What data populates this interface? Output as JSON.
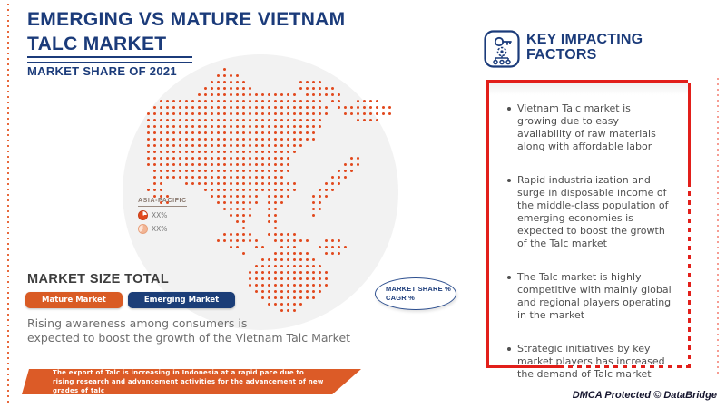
{
  "header": {
    "title_line1": "EMERGING VS MATURE VIETNAM",
    "title_line2": "TALC MARKET",
    "subtitle": "MARKET SHARE OF 2021"
  },
  "key_factors": {
    "heading_line1": "KEY IMPACTING",
    "heading_line2": "FACTORS",
    "icon": "key-gear-icon",
    "bullets": [
      "Vietnam Talc market is growing due to easy availability of raw materials along with affordable labor",
      "Rapid industrialization and surge in disposable income of the middle-class population of emerging economies is expected to boost the growth of the Talc market",
      "The Talc market is highly competitive with mainly global and regional players operating in the market",
      "Strategic initiatives by key market players has increased the demand of Talc market"
    ]
  },
  "map": {
    "region_label": "ASIA-PACIFIC",
    "legend": [
      {
        "icon": "pie-icon",
        "value": "XX%"
      },
      {
        "icon": "pie-icon",
        "value": "XX%"
      }
    ],
    "dot_color": "#e2491d",
    "bitmap": [
      "............................................",
      "............#...............................",
      "...........####.............................",
      "..........######........####................",
      ".........########.......######..............",
      "........################.######.............",
      "..##########################.##..####.......",
      ".############################.#########.....",
      "#############################..########.....",
      "############################.....####.......",
      "############################................",
      "###########################.................",
      "###########################.................",
      "#########################...................",
      "########################....................",
      "#######################.........##..........",
      "#######################........###..........",
      ".######################.......###...........",
      ".#####################.......###............",
      ".##...##################....###.............",
      "###......###############...###.............",
      ".###......########.####...###...............",
      "..##.......#######.###....##................",
      "............#####..##.....##................",
      ".............####..##.....#.................",
      "..............##...##.......................",
      "...............#....#.......................",
      "............#####..#####....................",
      "...........#######..######..###.............",
      ".............##..##..###...#####............",
      "...............#....######..###.............",
      "..................#########.................",
      ".................###########................",
      "................#############...............",
      "................#############...............",
      "................#############...............",
      ".................###########................",
      "..................#########.................",
      "...................######...................",
      ".....................###...................."
    ]
  },
  "market_size": {
    "heading": "MARKET SIZE TOTAL",
    "buttons": [
      {
        "label": "Mature Market",
        "color": "#d95b24"
      },
      {
        "label": "Emerging Market",
        "color": "#1c3e78"
      }
    ],
    "description_line1": "Rising awareness among consumers is",
    "description_line2": "expected to boost the growth of the Vietnam Talc Market"
  },
  "badge": {
    "line1": "MARKET SHARE %",
    "line2": "CAGR %"
  },
  "banner": {
    "text": "The export of Talc is increasing in Indonesia at a rapid pace due to rising research and advancement activities for the advancement of new grades of talc"
  },
  "footer": {
    "text": "DMCA Protected © DataBridge"
  },
  "colors": {
    "navy": "#1b3b7a",
    "orange": "#d95b24",
    "dot_orange": "#e2491d",
    "red_border": "#e21f1a",
    "circle_bg": "#f2f2f2"
  }
}
